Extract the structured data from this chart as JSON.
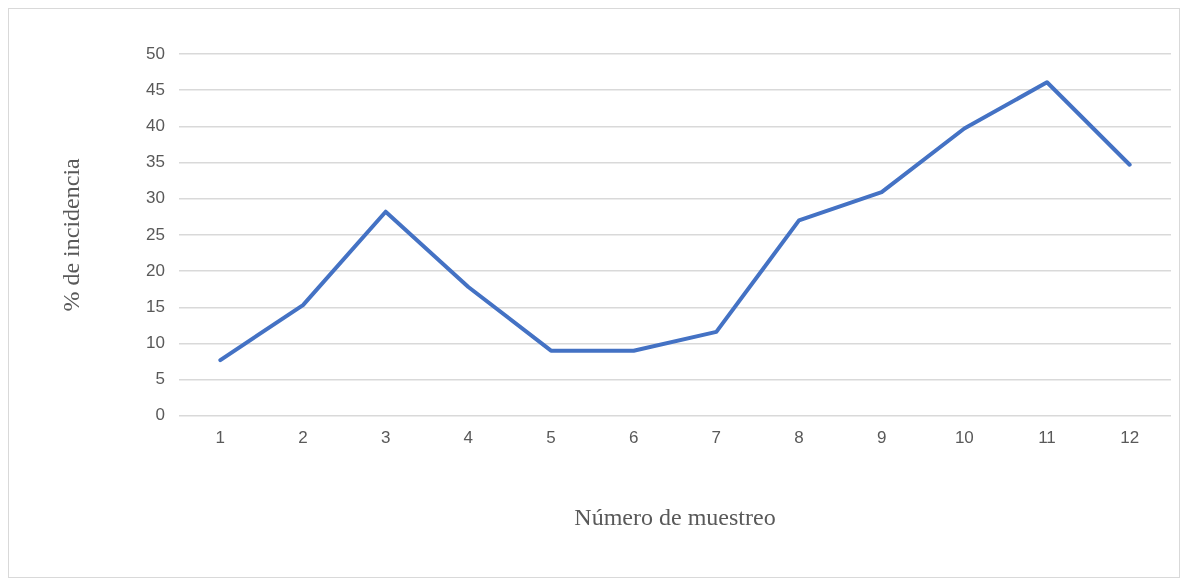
{
  "chart_data": {
    "type": "line",
    "xlabel": "Número de muestreo",
    "ylabel": "% de incidencia",
    "categories": [
      "1",
      "2",
      "3",
      "4",
      "5",
      "6",
      "7",
      "8",
      "9",
      "10",
      "11",
      "12"
    ],
    "values": [
      7.7,
      15.3,
      28.2,
      17.8,
      9.0,
      9.0,
      11.6,
      27.0,
      30.9,
      39.7,
      46.1,
      34.7
    ],
    "color": "#4472c4",
    "ylim": [
      0,
      50
    ],
    "yticks": [
      0,
      5,
      10,
      15,
      20,
      25,
      30,
      35,
      40,
      45,
      50
    ],
    "grid": "y",
    "legend": false,
    "marker": "none",
    "line_style": "solid"
  }
}
